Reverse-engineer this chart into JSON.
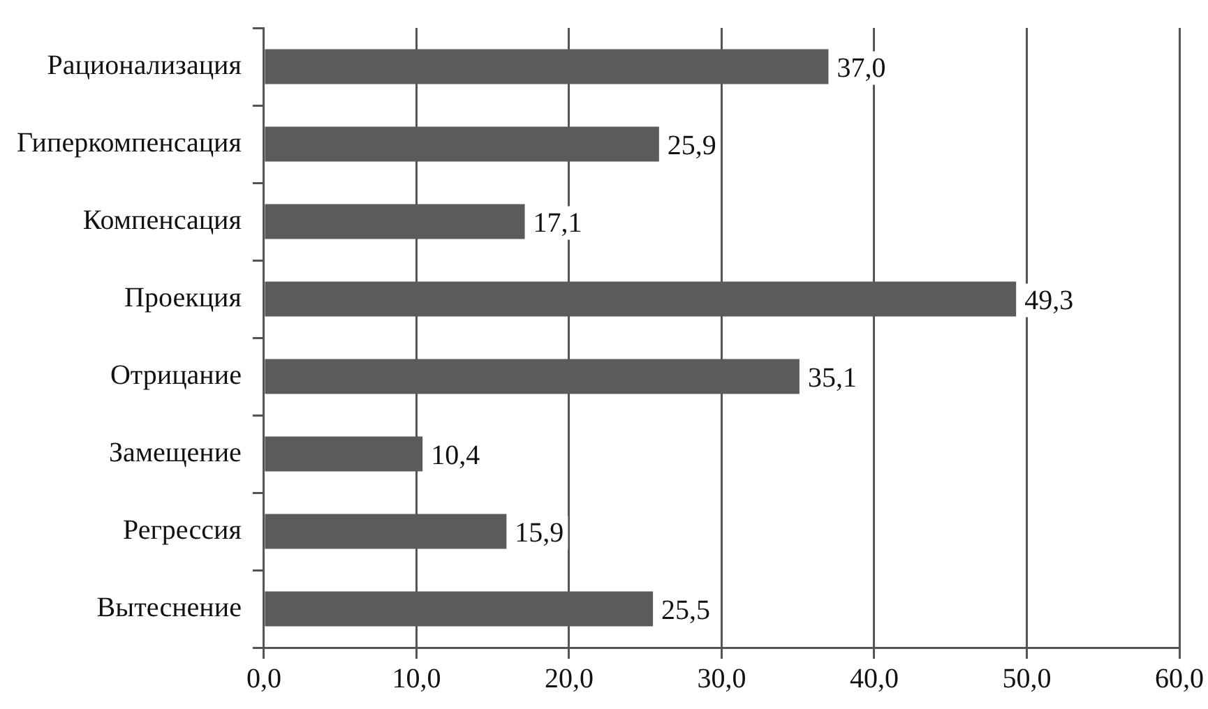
{
  "chart_data": {
    "type": "bar",
    "orientation": "horizontal",
    "categories": [
      "Рационализация",
      "Гиперкомпенсация",
      "Компенсация",
      "Проекция",
      "Отрицание",
      "Замещение",
      "Регрессия",
      "Вытеснение"
    ],
    "values": [
      37.0,
      25.9,
      17.1,
      49.3,
      35.1,
      10.4,
      15.9,
      25.5
    ],
    "value_labels": [
      "37,0",
      "25,9",
      "17,1",
      "49,3",
      "35,1",
      "10,4",
      "15,9",
      "25,5"
    ],
    "color": "#5b5b5b",
    "xlim": [
      0,
      60
    ],
    "xticks": [
      {
        "value": 0,
        "label": "0,0"
      },
      {
        "value": 10,
        "label": "10,0"
      },
      {
        "value": 20,
        "label": "20,0"
      },
      {
        "value": 30,
        "label": "30,0"
      },
      {
        "value": 40,
        "label": "40,0"
      },
      {
        "value": 50,
        "label": "50,0"
      },
      {
        "value": 60,
        "label": "60,0"
      }
    ],
    "grid": "x",
    "legend": false
  }
}
